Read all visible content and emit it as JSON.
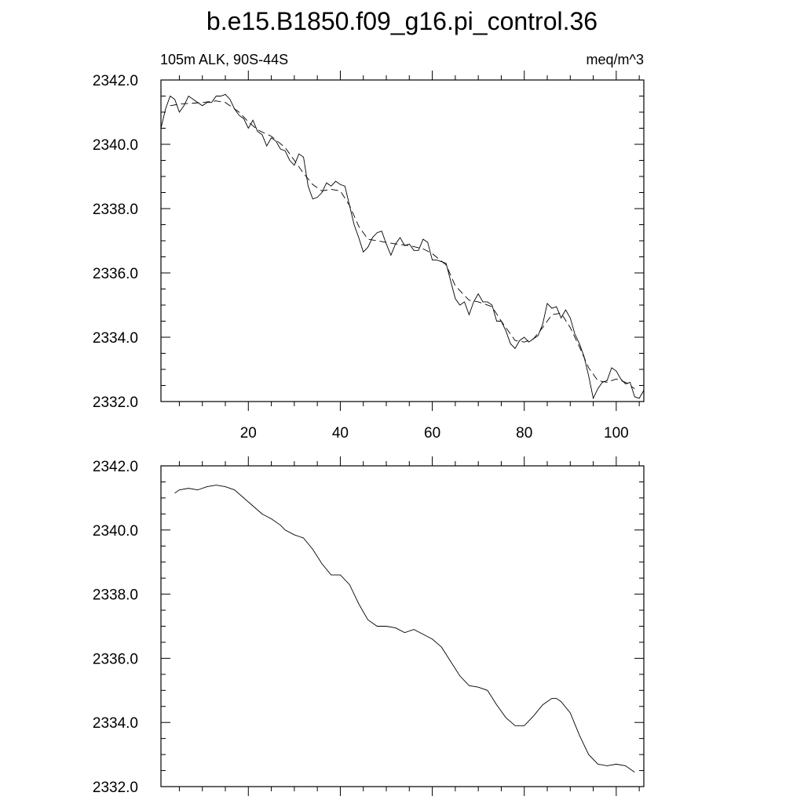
{
  "chart_data": [
    {
      "type": "line",
      "title": "b.e15.B1850.f09_g16.pi_control.36",
      "subtitle_left": "105m ALK, 90S-44S",
      "subtitle_right": "meq/m^3",
      "xlim": [
        1,
        106
      ],
      "ylim": [
        2332.0,
        2342.0
      ],
      "yticks": [
        "2342.0",
        "2340.0",
        "2338.0",
        "2336.0",
        "2334.0",
        "2332.0"
      ],
      "ytick_values": [
        2342,
        2340,
        2338,
        2336,
        2334,
        2332
      ],
      "xticks": [
        "20",
        "40",
        "60",
        "80",
        "100"
      ],
      "xtick_values": [
        20,
        40,
        60,
        80,
        100
      ],
      "grid": false,
      "series": [
        {
          "style": "solid",
          "x": [
            1,
            2,
            3,
            4,
            5,
            6,
            7,
            8,
            9,
            10,
            11,
            12,
            13,
            14,
            15,
            16,
            17,
            18,
            19,
            20,
            21,
            22,
            23,
            24,
            25,
            26,
            27,
            28,
            29,
            30,
            31,
            32,
            33,
            34,
            35,
            36,
            37,
            38,
            39,
            40,
            41,
            42,
            43,
            44,
            45,
            46,
            47,
            48,
            49,
            50,
            51,
            52,
            53,
            54,
            55,
            56,
            57,
            58,
            59,
            60,
            61,
            62,
            63,
            64,
            65,
            66,
            67,
            68,
            69,
            70,
            71,
            72,
            73,
            74,
            75,
            76,
            77,
            78,
            79,
            80,
            81,
            82,
            83,
            84,
            85,
            86,
            87,
            88,
            89,
            90,
            91,
            92,
            93,
            94,
            95,
            96,
            97,
            98,
            99,
            100,
            101,
            102,
            103,
            104,
            105,
            106
          ],
          "y": [
            2340.5,
            2341.1,
            2341.5,
            2341.4,
            2341.0,
            2341.2,
            2341.5,
            2341.4,
            2341.3,
            2341.2,
            2341.3,
            2341.3,
            2341.5,
            2341.5,
            2341.55,
            2341.4,
            2341.1,
            2340.9,
            2340.8,
            2340.5,
            2340.75,
            2340.4,
            2340.3,
            2339.95,
            2340.2,
            2340.1,
            2339.85,
            2339.8,
            2339.5,
            2339.35,
            2339.7,
            2339.6,
            2338.7,
            2338.3,
            2338.35,
            2338.5,
            2338.8,
            2338.7,
            2338.85,
            2338.75,
            2338.7,
            2338.1,
            2337.5,
            2337.1,
            2336.65,
            2336.8,
            2337.1,
            2337.25,
            2337.3,
            2336.9,
            2336.55,
            2336.9,
            2337.1,
            2336.85,
            2336.9,
            2336.7,
            2336.7,
            2337.05,
            2336.95,
            2336.4,
            2336.4,
            2336.35,
            2336.3,
            2335.75,
            2335.2,
            2335.0,
            2335.1,
            2334.7,
            2335.1,
            2335.35,
            2335.1,
            2335.1,
            2335.0,
            2334.5,
            2334.5,
            2334.2,
            2333.8,
            2333.65,
            2333.9,
            2334.0,
            2333.85,
            2333.95,
            2334.05,
            2334.4,
            2335.05,
            2334.9,
            2334.95,
            2334.6,
            2334.85,
            2334.6,
            2334.1,
            2333.8,
            2333.4,
            2332.8,
            2332.1,
            2332.4,
            2332.6,
            2332.65,
            2333.05,
            2332.95,
            2332.7,
            2332.55,
            2332.6,
            2332.15,
            2332.1,
            2332.35
          ]
        },
        {
          "style": "dashed",
          "x": [
            3,
            5,
            10,
            13,
            15,
            18,
            20,
            22,
            25,
            28,
            30,
            32,
            34,
            36,
            38,
            40,
            42,
            44,
            46,
            48,
            50,
            52,
            55,
            58,
            60,
            63,
            65,
            68,
            70,
            73,
            75,
            77,
            78,
            80,
            82,
            84,
            86,
            88,
            90,
            92,
            94,
            96,
            98,
            100,
            102,
            104
          ],
          "y": [
            2341.2,
            2341.25,
            2341.3,
            2341.35,
            2341.3,
            2341.0,
            2340.7,
            2340.45,
            2340.25,
            2339.9,
            2339.5,
            2339.1,
            2338.75,
            2338.55,
            2338.6,
            2338.55,
            2338.1,
            2337.45,
            2337.05,
            2337.0,
            2336.95,
            2336.9,
            2336.85,
            2336.75,
            2336.6,
            2336.25,
            2335.6,
            2335.15,
            2335.1,
            2334.95,
            2334.5,
            2334.1,
            2333.9,
            2333.85,
            2333.95,
            2334.3,
            2334.7,
            2334.75,
            2334.3,
            2333.7,
            2333.05,
            2332.65,
            2332.6,
            2332.7,
            2332.6,
            2332.4
          ]
        }
      ]
    },
    {
      "type": "line",
      "xlim": [
        1,
        106
      ],
      "ylim": [
        2332.0,
        2342.0
      ],
      "yticks": [
        "2342.0",
        "2340.0",
        "2338.0",
        "2336.0",
        "2334.0",
        "2332.0"
      ],
      "ytick_values": [
        2342,
        2340,
        2338,
        2336,
        2334,
        2332
      ],
      "xtick_values": [
        20,
        40,
        60,
        80,
        100
      ],
      "grid": false,
      "series": [
        {
          "style": "solid",
          "x": [
            4,
            5,
            7,
            9,
            11,
            13,
            15,
            17,
            19,
            21,
            23,
            25,
            27,
            28,
            30,
            32,
            34,
            36,
            38,
            40,
            42,
            44,
            46,
            48,
            50,
            52,
            54,
            56,
            58,
            60,
            62,
            64,
            66,
            68,
            70,
            72,
            74,
            76,
            78,
            80,
            82,
            84,
            86,
            87,
            88,
            90,
            92,
            94,
            96,
            98,
            100,
            102,
            104
          ],
          "y": [
            2341.15,
            2341.25,
            2341.3,
            2341.25,
            2341.35,
            2341.4,
            2341.35,
            2341.25,
            2341.0,
            2340.75,
            2340.5,
            2340.35,
            2340.15,
            2340.0,
            2339.85,
            2339.75,
            2339.4,
            2338.95,
            2338.6,
            2338.6,
            2338.3,
            2337.7,
            2337.2,
            2337.0,
            2337.0,
            2336.95,
            2336.8,
            2336.9,
            2336.75,
            2336.6,
            2336.35,
            2335.9,
            2335.45,
            2335.15,
            2335.1,
            2335.0,
            2334.55,
            2334.15,
            2333.9,
            2333.9,
            2334.2,
            2334.55,
            2334.75,
            2334.75,
            2334.65,
            2334.3,
            2333.6,
            2333.0,
            2332.7,
            2332.65,
            2332.7,
            2332.65,
            2332.45
          ]
        }
      ]
    }
  ]
}
